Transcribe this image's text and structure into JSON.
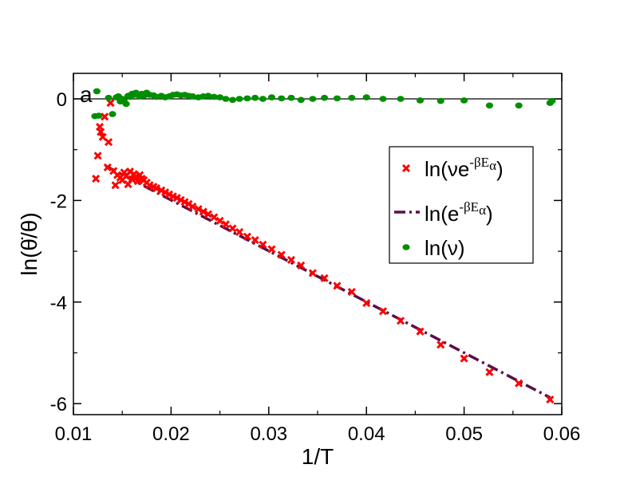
{
  "chart_data": {
    "type": "scatter",
    "panel_label": "a",
    "xlabel": "1/T",
    "ylabel": "ln(θ̇/θ)",
    "xlim": [
      0.01,
      0.06
    ],
    "ylim": [
      -6.2,
      0.5
    ],
    "xticks": [
      0.01,
      0.02,
      0.03,
      0.04,
      0.05,
      0.06
    ],
    "xtick_labels": [
      "0.01",
      "0.02",
      "0.03",
      "0.04",
      "0.05",
      "0.06"
    ],
    "yticks": [
      0,
      -2,
      -4,
      -6
    ],
    "ytick_labels": [
      "0",
      "-2",
      "-4",
      "-6"
    ],
    "reference_line_y": 0,
    "legend_position": "right-middle",
    "colors": {
      "red": "#ff0000",
      "green": "#008f00",
      "dash": "#5a0f4a"
    },
    "series": [
      {
        "name": "ln(νe^-βEα)",
        "legend_main": "ln(νe",
        "legend_sup": "-βE",
        "legend_sub": "α",
        "legend_close": ")",
        "marker": "x",
        "color": "#ff0000",
        "points": [
          [
            0.0123,
            -1.57
          ],
          [
            0.0125,
            -1.12
          ],
          [
            0.0127,
            -0.55
          ],
          [
            0.0128,
            -0.65
          ],
          [
            0.013,
            -0.75
          ],
          [
            0.0132,
            -0.35
          ],
          [
            0.0136,
            -0.85
          ],
          [
            0.0138,
            -0.08
          ],
          [
            0.0135,
            -1.35
          ],
          [
            0.0141,
            -1.42
          ],
          [
            0.0143,
            -1.7
          ],
          [
            0.0145,
            -1.5
          ],
          [
            0.0148,
            -1.55
          ],
          [
            0.015,
            -1.6
          ],
          [
            0.0152,
            -1.45
          ],
          [
            0.0154,
            -1.52
          ],
          [
            0.0156,
            -1.68
          ],
          [
            0.0158,
            -1.43
          ],
          [
            0.016,
            -1.58
          ],
          [
            0.0162,
            -1.48
          ],
          [
            0.0164,
            -1.53
          ],
          [
            0.0166,
            -1.62
          ],
          [
            0.0168,
            -1.5
          ],
          [
            0.017,
            -1.57
          ],
          [
            0.0172,
            -1.6
          ],
          [
            0.0175,
            -1.65
          ],
          [
            0.0178,
            -1.7
          ],
          [
            0.0182,
            -1.73
          ],
          [
            0.0185,
            -1.76
          ],
          [
            0.019,
            -1.8
          ],
          [
            0.0194,
            -1.84
          ],
          [
            0.0198,
            -1.88
          ],
          [
            0.0202,
            -1.92
          ],
          [
            0.0206,
            -1.95
          ],
          [
            0.021,
            -1.99
          ],
          [
            0.0214,
            -2.03
          ],
          [
            0.0218,
            -2.07
          ],
          [
            0.0222,
            -2.12
          ],
          [
            0.0228,
            -2.17
          ],
          [
            0.0233,
            -2.22
          ],
          [
            0.0238,
            -2.27
          ],
          [
            0.0244,
            -2.33
          ],
          [
            0.025,
            -2.4
          ],
          [
            0.0256,
            -2.47
          ],
          [
            0.0263,
            -2.55
          ],
          [
            0.027,
            -2.62
          ],
          [
            0.0278,
            -2.71
          ],
          [
            0.0286,
            -2.78
          ],
          [
            0.0294,
            -2.87
          ],
          [
            0.0303,
            -2.96
          ],
          [
            0.0313,
            -3.07
          ],
          [
            0.0323,
            -3.17
          ],
          [
            0.0333,
            -3.28
          ],
          [
            0.0345,
            -3.43
          ],
          [
            0.0357,
            -3.53
          ],
          [
            0.037,
            -3.68
          ],
          [
            0.0385,
            -3.8
          ],
          [
            0.04,
            -4.02
          ],
          [
            0.0417,
            -4.18
          ],
          [
            0.0435,
            -4.37
          ],
          [
            0.0455,
            -4.58
          ],
          [
            0.0476,
            -4.84
          ],
          [
            0.05,
            -5.11
          ],
          [
            0.0526,
            -5.38
          ],
          [
            0.0556,
            -5.6
          ],
          [
            0.0588,
            -5.92
          ]
        ]
      },
      {
        "name": "ln(e^-βEα)",
        "legend_main": "ln(e",
        "legend_sup": "-βE",
        "legend_sub": "α",
        "legend_close": ")",
        "style": "dashed-line",
        "color": "#5a0f4a",
        "points": [
          [
            0.0133,
            -1.32
          ],
          [
            0.0588,
            -5.88
          ]
        ]
      },
      {
        "name": "ln(ν)",
        "legend_main": "ln(ν)",
        "marker": "circle",
        "color": "#008f00",
        "points": [
          [
            0.0122,
            -0.34
          ],
          [
            0.0124,
            0.15
          ],
          [
            0.0126,
            -0.33
          ],
          [
            0.0136,
            0.02
          ],
          [
            0.014,
            -0.3
          ],
          [
            0.0144,
            0.03
          ],
          [
            0.0146,
            0.05
          ],
          [
            0.0148,
            -0.05
          ],
          [
            0.015,
            0.0
          ],
          [
            0.0152,
            -0.05
          ],
          [
            0.0154,
            -0.1
          ],
          [
            0.0156,
            0.06
          ],
          [
            0.0158,
            0.04
          ],
          [
            0.016,
            0.1
          ],
          [
            0.0162,
            0.08
          ],
          [
            0.0164,
            0.12
          ],
          [
            0.0166,
            0.08
          ],
          [
            0.0168,
            0.05
          ],
          [
            0.017,
            0.1
          ],
          [
            0.0172,
            0.06
          ],
          [
            0.0175,
            0.12
          ],
          [
            0.0178,
            0.08
          ],
          [
            0.0182,
            0.07
          ],
          [
            0.0185,
            0.04
          ],
          [
            0.019,
            0.06
          ],
          [
            0.0194,
            0.03
          ],
          [
            0.0198,
            0.05
          ],
          [
            0.0202,
            0.08
          ],
          [
            0.0206,
            0.09
          ],
          [
            0.021,
            0.07
          ],
          [
            0.0214,
            0.08
          ],
          [
            0.0218,
            0.06
          ],
          [
            0.0222,
            0.05
          ],
          [
            0.0228,
            0.03
          ],
          [
            0.0233,
            0.05
          ],
          [
            0.0238,
            0.06
          ],
          [
            0.0244,
            0.04
          ],
          [
            0.025,
            0.03
          ],
          [
            0.0256,
            0.0
          ],
          [
            0.0263,
            -0.02
          ],
          [
            0.027,
            0.0
          ],
          [
            0.0278,
            0.01
          ],
          [
            0.0286,
            0.02
          ],
          [
            0.0294,
            0.0
          ],
          [
            0.0303,
            0.03
          ],
          [
            0.0313,
            0.01
          ],
          [
            0.0323,
            0.02
          ],
          [
            0.0333,
            -0.02
          ],
          [
            0.0345,
            0.0
          ],
          [
            0.0357,
            0.02
          ],
          [
            0.037,
            0.01
          ],
          [
            0.0385,
            0.02
          ],
          [
            0.04,
            0.03
          ],
          [
            0.0417,
            0.0
          ],
          [
            0.0435,
            0.0
          ],
          [
            0.0455,
            -0.03
          ],
          [
            0.0476,
            -0.04
          ],
          [
            0.05,
            -0.03
          ],
          [
            0.0526,
            -0.13
          ],
          [
            0.0556,
            -0.13
          ],
          [
            0.0588,
            -0.08
          ],
          [
            0.059,
            -0.04
          ]
        ]
      }
    ]
  }
}
